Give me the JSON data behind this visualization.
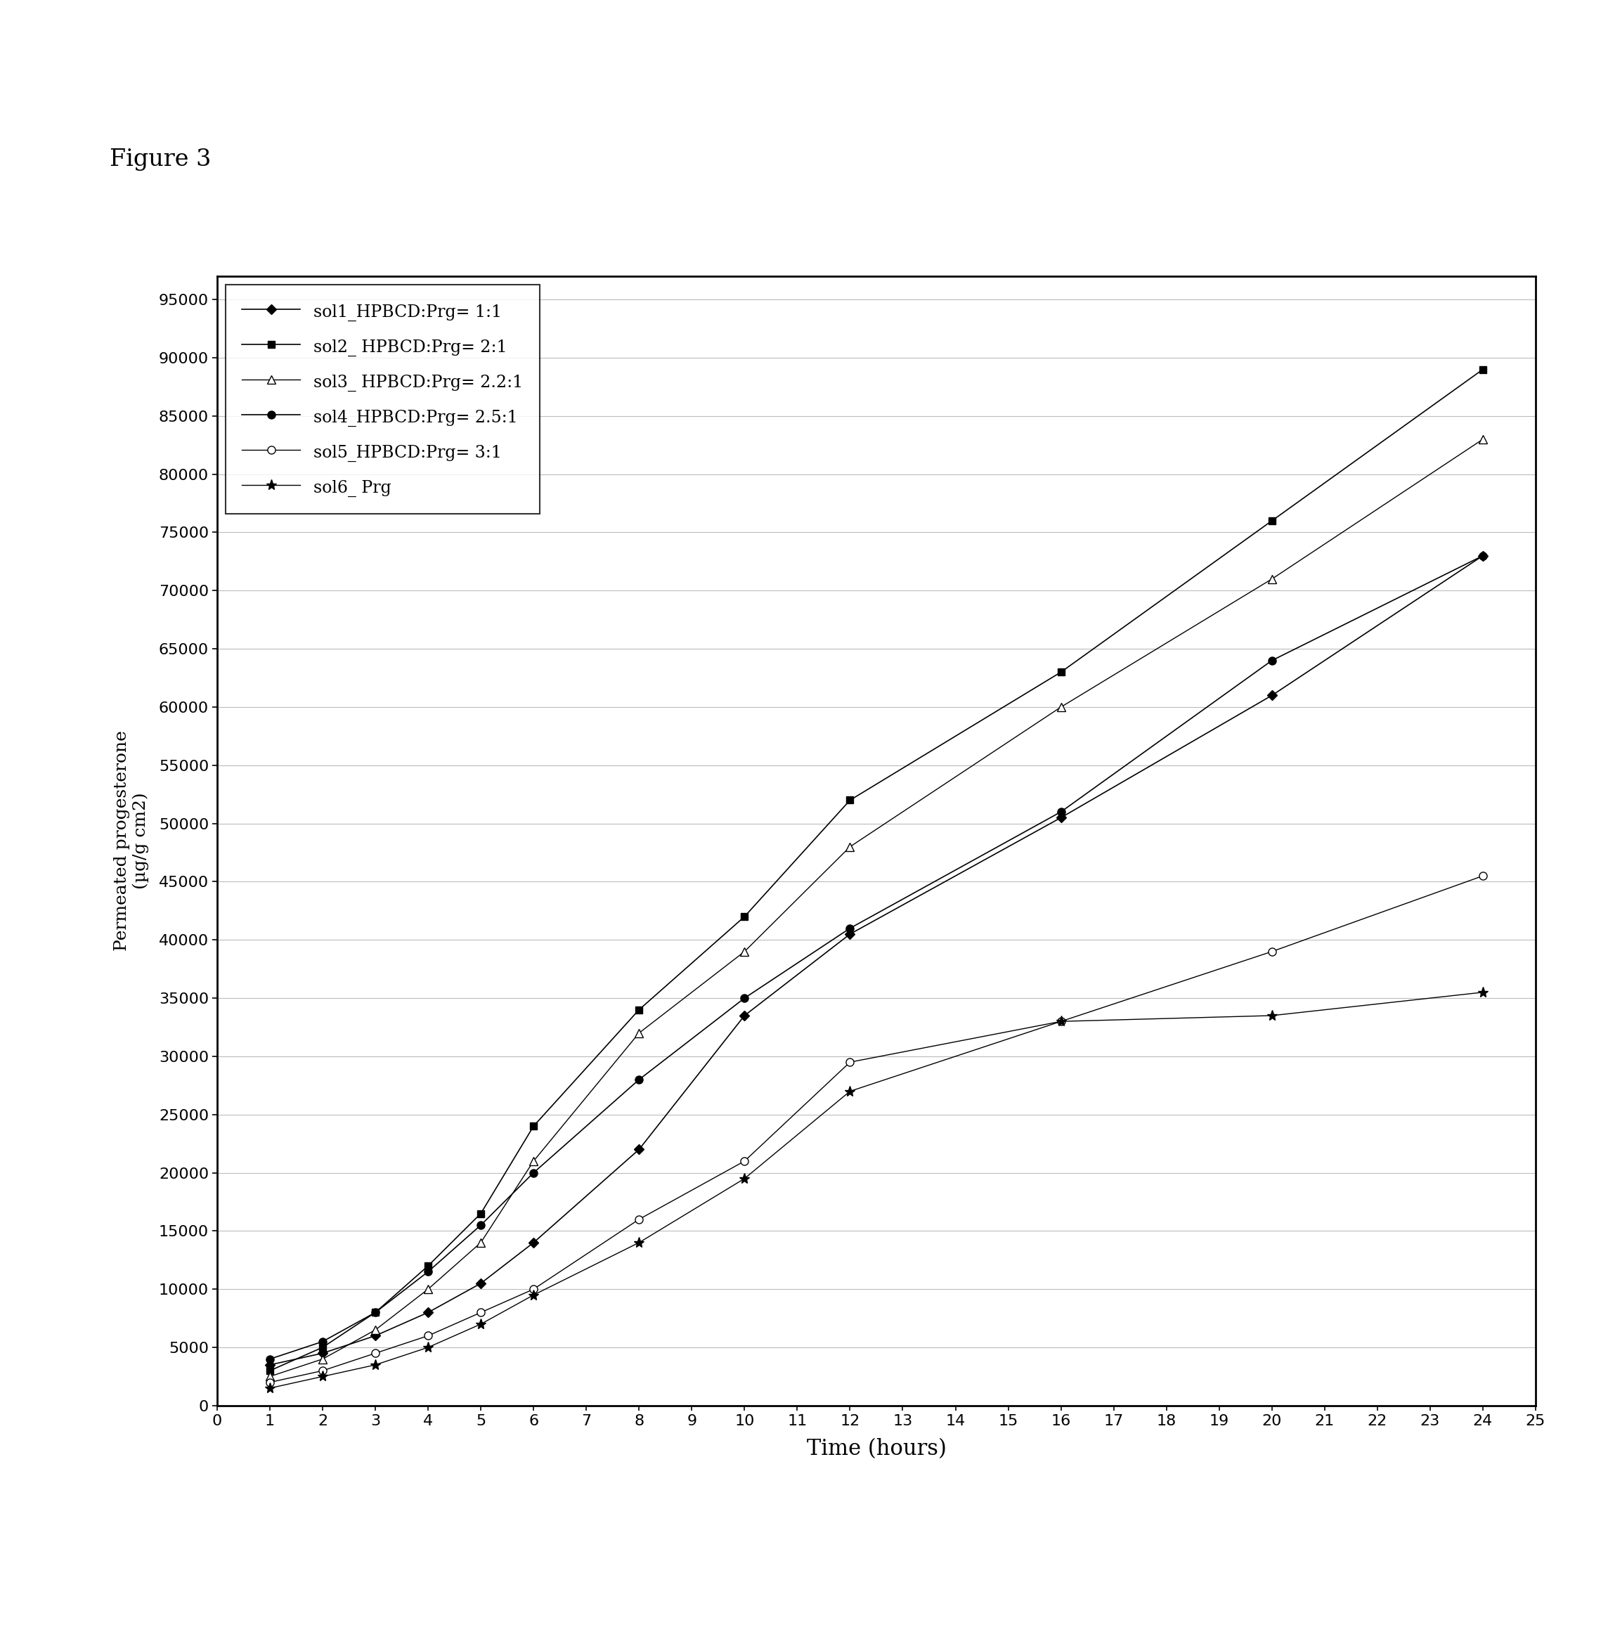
{
  "figure_label": "Figure 3",
  "xlabel": "Time (hours)",
  "ylabel_line1": "Permeated progesterone",
  "ylabel_line2": "(µg/g cm2)",
  "xlim": [
    0,
    25
  ],
  "ylim": [
    0,
    97000
  ],
  "xticks": [
    0,
    1,
    2,
    3,
    4,
    5,
    6,
    7,
    8,
    9,
    10,
    11,
    12,
    13,
    14,
    15,
    16,
    17,
    18,
    19,
    20,
    21,
    22,
    23,
    24,
    25
  ],
  "yticks": [
    0,
    5000,
    10000,
    15000,
    20000,
    25000,
    30000,
    35000,
    40000,
    45000,
    50000,
    55000,
    60000,
    65000,
    70000,
    75000,
    80000,
    85000,
    90000,
    95000
  ],
  "series": [
    {
      "label": "sol1_HPBCD:Prg= 1:1",
      "x": [
        1,
        2,
        3,
        4,
        5,
        6,
        8,
        10,
        12,
        16,
        20,
        24
      ],
      "y": [
        3500,
        4500,
        6000,
        8000,
        10500,
        14000,
        22000,
        33500,
        40500,
        50500,
        61000,
        73000
      ],
      "color": "#000000",
      "marker": "D",
      "markersize": 7,
      "linestyle": "-",
      "linewidth": 1.2,
      "fillstyle": "full"
    },
    {
      "label": "sol2_ HPBCD:Prg= 2:1",
      "x": [
        1,
        2,
        3,
        4,
        5,
        6,
        8,
        10,
        12,
        16,
        20,
        24
      ],
      "y": [
        3000,
        5000,
        8000,
        12000,
        16500,
        24000,
        34000,
        42000,
        52000,
        63000,
        76000,
        89000
      ],
      "color": "#000000",
      "marker": "s",
      "markersize": 7,
      "linestyle": "-",
      "linewidth": 1.2,
      "fillstyle": "full"
    },
    {
      "label": "sol3_ HPBCD:Prg= 2.2:1",
      "x": [
        1,
        2,
        3,
        4,
        5,
        6,
        8,
        10,
        12,
        16,
        20,
        24
      ],
      "y": [
        2500,
        4000,
        6500,
        10000,
        14000,
        21000,
        32000,
        39000,
        48000,
        60000,
        71000,
        83000
      ],
      "color": "#000000",
      "marker": "^",
      "markersize": 8,
      "linestyle": "-",
      "linewidth": 1.0,
      "fillstyle": "none"
    },
    {
      "label": "sol4_HPBCD:Prg= 2.5:1",
      "x": [
        1,
        2,
        3,
        4,
        5,
        6,
        8,
        10,
        12,
        16,
        20,
        24
      ],
      "y": [
        4000,
        5500,
        8000,
        11500,
        15500,
        20000,
        28000,
        35000,
        41000,
        51000,
        64000,
        73000
      ],
      "color": "#000000",
      "marker": "o",
      "markersize": 8,
      "linestyle": "-",
      "linewidth": 1.2,
      "fillstyle": "full"
    },
    {
      "label": "sol5_HPBCD:Prg= 3:1",
      "x": [
        1,
        2,
        3,
        4,
        5,
        6,
        8,
        10,
        12,
        16,
        20,
        24
      ],
      "y": [
        2000,
        3000,
        4500,
        6000,
        8000,
        10000,
        16000,
        21000,
        29500,
        33000,
        39000,
        45500
      ],
      "color": "#000000",
      "marker": "o",
      "markersize": 8,
      "linestyle": "-",
      "linewidth": 1.0,
      "fillstyle": "none"
    },
    {
      "label": "sol6_ Prg",
      "x": [
        1,
        2,
        3,
        4,
        5,
        6,
        8,
        10,
        12,
        16,
        20,
        24
      ],
      "y": [
        1500,
        2500,
        3500,
        5000,
        7000,
        9500,
        14000,
        19500,
        27000,
        33000,
        33500,
        35500
      ],
      "color": "#000000",
      "marker": "*",
      "markersize": 11,
      "linestyle": "-",
      "linewidth": 1.0,
      "fillstyle": "full"
    }
  ],
  "background_color": "#ffffff"
}
